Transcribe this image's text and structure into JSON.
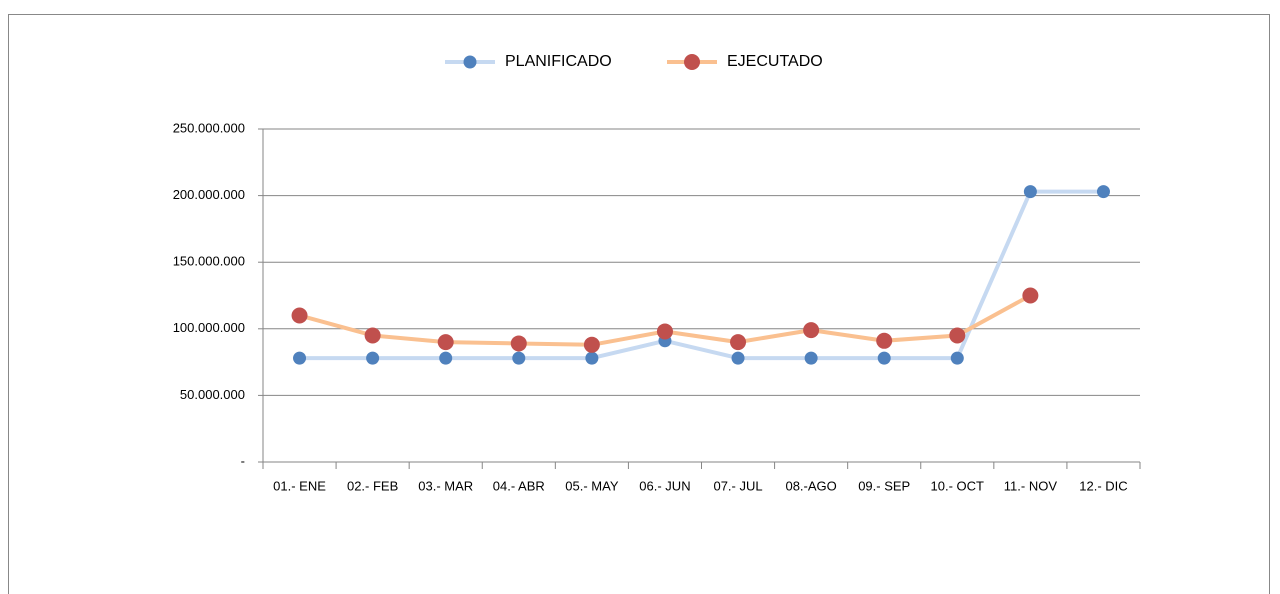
{
  "chart_data": {
    "type": "line",
    "categories": [
      "01.- ENE",
      "02.- FEB",
      "03.- MAR",
      "04.- ABR",
      "05.- MAY",
      "06.- JUN",
      "07.- JUL",
      "08.-AGO",
      "09.- SEP",
      "10.- OCT",
      "11.- NOV",
      "12.- DIC"
    ],
    "series": [
      {
        "name": "PLANIFICADO",
        "color": "#4f81bd",
        "line_color": "#c6d9f1",
        "values": [
          78000000,
          78000000,
          78000000,
          78000000,
          78000000,
          91000000,
          78000000,
          78000000,
          78000000,
          78000000,
          203000000,
          203000000
        ]
      },
      {
        "name": "EJECUTADO",
        "color": "#c0504d",
        "line_color": "#fac090",
        "values": [
          110000000,
          95000000,
          90000000,
          89000000,
          88000000,
          98000000,
          90000000,
          99000000,
          91000000,
          95000000,
          125000000,
          null
        ]
      }
    ],
    "ylim": [
      0,
      250000000
    ],
    "yticks": [
      {
        "value": 0,
        "label": "-"
      },
      {
        "value": 50000000,
        "label": "50.000.000"
      },
      {
        "value": 100000000,
        "label": "100.000.000"
      },
      {
        "value": 150000000,
        "label": "150.000.000"
      },
      {
        "value": 200000000,
        "label": "200.000.000"
      },
      {
        "value": 250000000,
        "label": "250.000.000"
      }
    ],
    "grid": true,
    "legend": "top"
  }
}
